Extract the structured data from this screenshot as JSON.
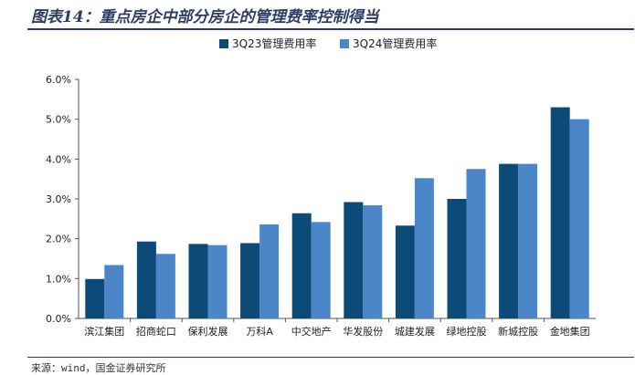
{
  "figure": {
    "title": "图表14：重点房企中部分房企的管理费率控制得当",
    "source": "来源：wind，国金证券研究所"
  },
  "chart_data": {
    "type": "bar",
    "categories": [
      "滨江集团",
      "招商蛇口",
      "保利发展",
      "万科A",
      "中交地产",
      "华发股份",
      "城建发展",
      "绿地控股",
      "新城控股",
      "金地集团"
    ],
    "series": [
      {
        "name": "3Q23管理费用率",
        "color": "#0c4a78",
        "values": [
          0.99,
          1.93,
          1.87,
          1.89,
          2.64,
          2.92,
          2.33,
          3.0,
          3.88,
          5.3
        ]
      },
      {
        "name": "3Q24管理费用率",
        "color": "#4a86c8",
        "values": [
          1.34,
          1.62,
          1.84,
          2.36,
          2.42,
          2.84,
          3.52,
          3.75,
          3.88,
          5.0
        ]
      }
    ],
    "ylim": [
      0,
      6
    ],
    "yticks": [
      "0.0%",
      "1.0%",
      "2.0%",
      "3.0%",
      "4.0%",
      "5.0%",
      "6.0%"
    ],
    "y_unit": "%",
    "grid": false,
    "legend_position": "top-center",
    "title": "",
    "xlabel": "",
    "ylabel": ""
  }
}
